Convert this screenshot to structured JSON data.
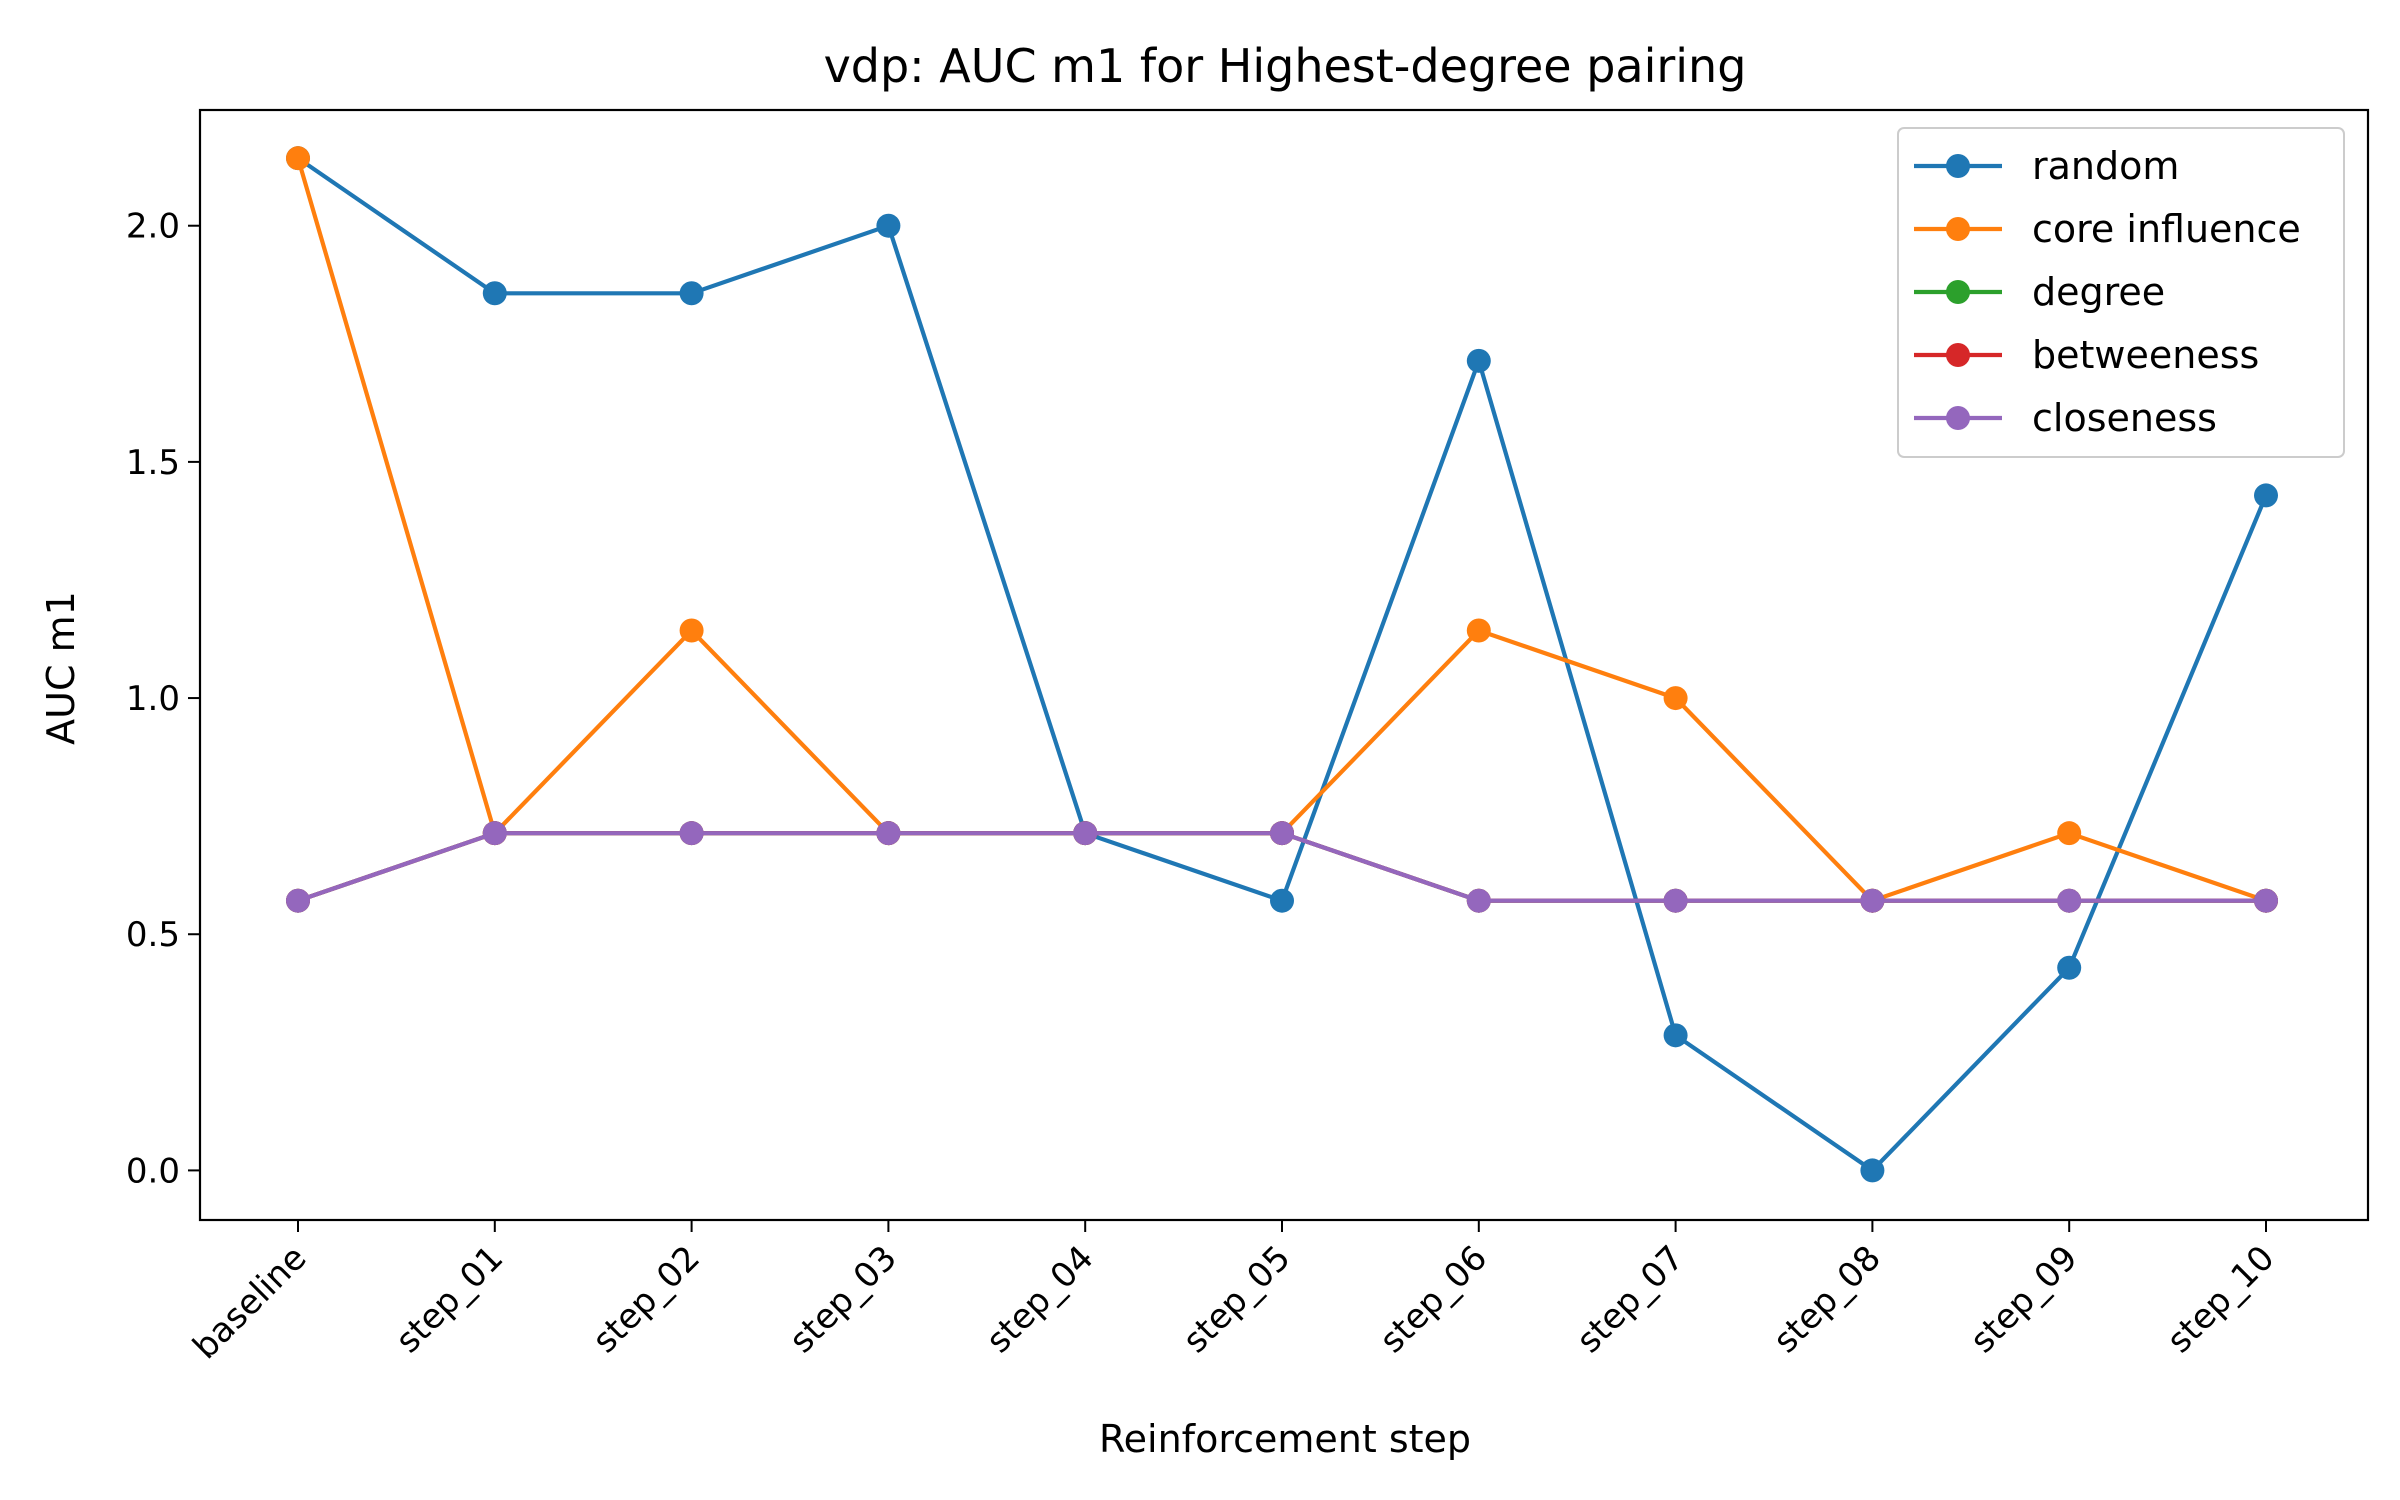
{
  "chart_data": {
    "type": "line",
    "title": "vdp: AUC m1 for Highest-degree pairing",
    "xlabel": "Reinforcement step",
    "ylabel": "AUC m1",
    "categories": [
      "baseline",
      "step_01",
      "step_02",
      "step_03",
      "step_04",
      "step_05",
      "step_06",
      "step_07",
      "step_08",
      "step_09",
      "step_10"
    ],
    "ylim": [
      -0.105,
      2.245
    ],
    "yticks": [
      0.0,
      0.5,
      1.0,
      1.5,
      2.0
    ],
    "ytick_labels": [
      "0.0",
      "0.5",
      "1.0",
      "1.5",
      "2.0"
    ],
    "grid": false,
    "legend_position": "top-right",
    "series": [
      {
        "name": "random",
        "color": "#1f77b4",
        "values": [
          2.143,
          1.857,
          1.857,
          2.0,
          0.714,
          0.571,
          1.714,
          0.286,
          0.0,
          0.429,
          1.429
        ]
      },
      {
        "name": "core influence",
        "color": "#ff7f0e",
        "values": [
          2.143,
          0.714,
          1.143,
          0.714,
          0.714,
          0.714,
          1.143,
          1.0,
          0.571,
          0.714,
          0.571
        ]
      },
      {
        "name": "degree",
        "color": "#2ca02c",
        "values": [
          0.571,
          0.714,
          0.714,
          0.714,
          0.714,
          0.714,
          0.571,
          0.571,
          0.571,
          0.571,
          0.571
        ]
      },
      {
        "name": "betweeness",
        "color": "#d62728",
        "values": [
          0.571,
          0.714,
          0.714,
          0.714,
          0.714,
          0.714,
          0.571,
          0.571,
          0.571,
          0.571,
          0.571
        ]
      },
      {
        "name": "closeness",
        "color": "#9467bd",
        "values": [
          0.571,
          0.714,
          0.714,
          0.714,
          0.714,
          0.714,
          0.571,
          0.571,
          0.571,
          0.571,
          0.571
        ]
      }
    ]
  }
}
